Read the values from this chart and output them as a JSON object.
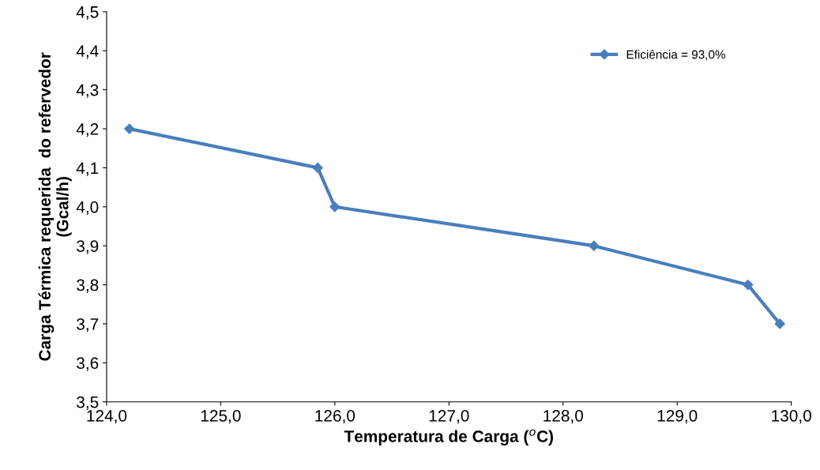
{
  "chart_data": {
    "type": "line",
    "xlabel": "Temperatura de Carga ($^{o}$C)",
    "ylabel": "Carga Térmica requerida  do refervedor\n(Gcal/h)",
    "x": [
      124.2,
      125.85,
      126.0,
      128.27,
      129.62,
      129.9
    ],
    "series": [
      {
        "name": "Eficiência = 93,0%",
        "color": "#4a7ebb",
        "values": [
          4.2,
          4.1,
          4.0,
          3.9,
          3.8,
          3.7
        ]
      }
    ],
    "xlim": [
      124.0,
      130.0
    ],
    "xticks": [
      {
        "value": 124,
        "label": "124,0"
      },
      {
        "value": 125,
        "label": "125,0"
      },
      {
        "value": 126,
        "label": "126,0"
      },
      {
        "value": 127,
        "label": "127,0"
      },
      {
        "value": 128,
        "label": "128,0"
      },
      {
        "value": 129,
        "label": "129,0"
      },
      {
        "value": 130,
        "label": "130,0"
      }
    ],
    "ylim": [
      3.5,
      4.5
    ],
    "yticks": [
      {
        "value": 3.5,
        "label": "3,5"
      },
      {
        "value": 3.6,
        "label": "3,6"
      },
      {
        "value": 3.7,
        "label": "3,7"
      },
      {
        "value": 3.8,
        "label": "3,8"
      },
      {
        "value": 3.9,
        "label": "3,9"
      },
      {
        "value": 4.0,
        "label": "4,0"
      },
      {
        "value": 4.1,
        "label": "4,1"
      },
      {
        "value": 4.2,
        "label": "4,2"
      },
      {
        "value": 4.3,
        "label": "4,3"
      },
      {
        "value": 4.4,
        "label": "4,4"
      },
      {
        "value": 4.5,
        "label": "4,5"
      }
    ],
    "marker": "diamond",
    "line_style": "solid",
    "grid": false,
    "legend": "top right"
  }
}
